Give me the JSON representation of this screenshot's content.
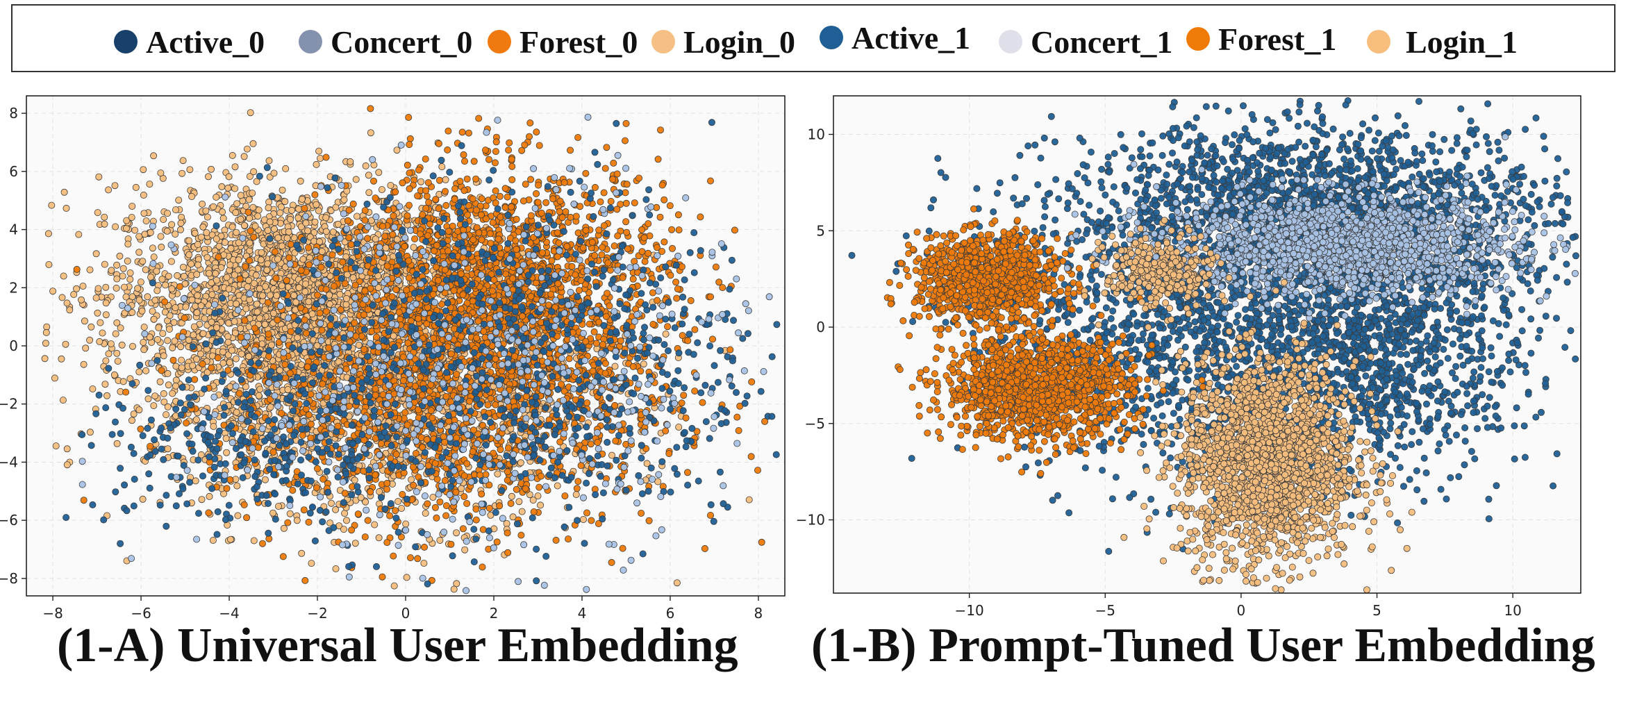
{
  "legend": {
    "items": [
      {
        "label": "Active_0",
        "color": "#17406b"
      },
      {
        "label": "Concert_0",
        "color": "#8592ad"
      },
      {
        "label": "Forest_0",
        "color": "#f07a10"
      },
      {
        "label": "Login_0",
        "color": "#f6bf84"
      },
      {
        "label": "Active_1",
        "color": "#1f5f95"
      },
      {
        "label": "Concert_1",
        "color": "#dfe0ea"
      },
      {
        "label": "Forest_1",
        "color": "#ef7a08"
      },
      {
        "label": "Login_1",
        "color": "#f7be7d"
      }
    ]
  },
  "chart_data": [
    {
      "type": "scatter",
      "title": "(1-A)  Universal User Embedding",
      "xlabel": "",
      "ylabel": "",
      "xlim": [
        -8.6,
        8.6
      ],
      "ylim": [
        -8.6,
        8.6
      ],
      "xticks": [
        -8,
        -6,
        -4,
        -2,
        0,
        2,
        4,
        6,
        8
      ],
      "yticks": [
        -8,
        -6,
        -4,
        -2,
        0,
        2,
        4,
        6,
        8
      ],
      "grid": true,
      "series": [
        {
          "name": "Login",
          "color": "#f7be7d",
          "clusters": [
            {
              "cx": -2.6,
              "cy": 1.8,
              "sx": 2.1,
              "sy": 1.9,
              "n": 2400
            },
            {
              "cx": -0.5,
              "cy": -1.5,
              "sx": 2.6,
              "sy": 2.2,
              "n": 1800
            }
          ]
        },
        {
          "name": "Forest",
          "color": "#ef7a08",
          "clusters": [
            {
              "cx": 2.2,
              "cy": 2.2,
              "sx": 1.9,
              "sy": 2.0,
              "n": 1700
            },
            {
              "cx": 1.0,
              "cy": -2.0,
              "sx": 2.5,
              "sy": 2.2,
              "n": 1300
            }
          ]
        },
        {
          "name": "Active",
          "color": "#1f5f95",
          "clusters": [
            {
              "cx": 2.5,
              "cy": -0.5,
              "sx": 2.8,
              "sy": 3.0,
              "n": 850
            },
            {
              "cx": -3.5,
              "cy": -3.5,
              "sx": 2.0,
              "sy": 1.4,
              "n": 300
            }
          ]
        },
        {
          "name": "Concert",
          "color": "#a9c3e6",
          "clusters": [
            {
              "cx": 1.5,
              "cy": -1.0,
              "sx": 3.2,
              "sy": 3.2,
              "n": 550
            }
          ]
        }
      ]
    },
    {
      "type": "scatter",
      "title": "(1-B)  Prompt-Tuned User Embedding",
      "xlabel": "",
      "ylabel": "",
      "xlim": [
        -15,
        12.5
      ],
      "ylim": [
        -13.8,
        12
      ],
      "xticks": [
        -10,
        -5,
        0,
        5,
        10
      ],
      "yticks": [
        -10,
        -5,
        0,
        5,
        10
      ],
      "grid": true,
      "series": [
        {
          "name": "Active",
          "color": "#1f5f95",
          "clusters": [
            {
              "cx": 2.5,
              "cy": 6.0,
              "sx": 4.5,
              "sy": 2.3,
              "n": 1900
            },
            {
              "cx": 5.0,
              "cy": -1.0,
              "sx": 2.8,
              "sy": 3.2,
              "n": 1200
            },
            {
              "cx": -1.5,
              "cy": -2.0,
              "sx": 3.2,
              "sy": 3.2,
              "n": 800
            },
            {
              "cx": -5.5,
              "cy": 1.5,
              "sx": 3.0,
              "sy": 2.5,
              "n": 300
            }
          ]
        },
        {
          "name": "Forest",
          "color": "#ef7a08",
          "clusters": [
            {
              "cx": -9.3,
              "cy": 2.5,
              "sx": 1.3,
              "sy": 1.1,
              "n": 1000
            },
            {
              "cx": -7.5,
              "cy": -3.2,
              "sx": 1.7,
              "sy": 1.3,
              "n": 1300
            }
          ]
        },
        {
          "name": "Concert",
          "color": "#a9c3e6",
          "clusters": [
            {
              "cx": 3.6,
              "cy": 4.3,
              "sx": 3.2,
              "sy": 1.3,
              "n": 1500
            }
          ]
        },
        {
          "name": "Login",
          "color": "#f7be7d",
          "clusters": [
            {
              "cx": 1.0,
              "cy": -7.0,
              "sx": 1.6,
              "sy": 2.6,
              "n": 2000
            },
            {
              "cx": -3.0,
              "cy": 2.8,
              "sx": 1.0,
              "sy": 1.0,
              "n": 300
            }
          ]
        }
      ]
    }
  ]
}
